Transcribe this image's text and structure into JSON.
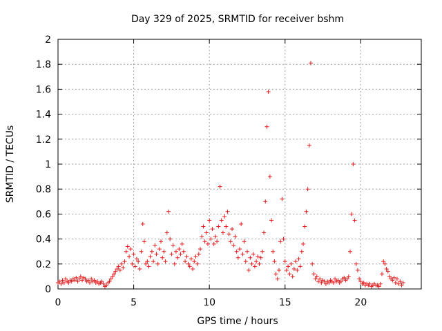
{
  "chart_data": {
    "type": "scatter",
    "title": "Day 329 of 2025, SRMTID for receiver bshm",
    "xlabel": "GPS time / hours",
    "ylabel": "SRMTID / TECUs",
    "xlim": [
      0,
      24
    ],
    "ylim": [
      0,
      2
    ],
    "xticks": [
      0,
      5,
      10,
      15,
      20
    ],
    "xtick_labels": [
      "0",
      "5",
      "10",
      "15",
      "20"
    ],
    "yticks": [
      0,
      0.2,
      0.4,
      0.6,
      0.8,
      1,
      1.2,
      1.4,
      1.6,
      1.8,
      2
    ],
    "ytick_labels": [
      "0",
      "0.2",
      "0.4",
      "0.6",
      "0.8",
      "1",
      "1.2",
      "1.4",
      "1.6",
      "1.8",
      "2"
    ],
    "grid": true,
    "marker": "+",
    "color": "#e41a1c",
    "series": [
      {
        "name": "SRMTID",
        "points": [
          [
            0.0,
            0.05
          ],
          [
            0.1,
            0.06
          ],
          [
            0.2,
            0.04
          ],
          [
            0.3,
            0.07
          ],
          [
            0.4,
            0.05
          ],
          [
            0.5,
            0.08
          ],
          [
            0.6,
            0.06
          ],
          [
            0.7,
            0.05
          ],
          [
            0.8,
            0.07
          ],
          [
            0.9,
            0.06
          ],
          [
            1.0,
            0.08
          ],
          [
            1.1,
            0.07
          ],
          [
            1.2,
            0.09
          ],
          [
            1.3,
            0.06
          ],
          [
            1.4,
            0.08
          ],
          [
            1.5,
            0.1
          ],
          [
            1.6,
            0.07
          ],
          [
            1.7,
            0.09
          ],
          [
            1.8,
            0.08
          ],
          [
            1.9,
            0.06
          ],
          [
            2.0,
            0.07
          ],
          [
            2.1,
            0.05
          ],
          [
            2.2,
            0.08
          ],
          [
            2.3,
            0.06
          ],
          [
            2.4,
            0.07
          ],
          [
            2.5,
            0.05
          ],
          [
            2.6,
            0.06
          ],
          [
            2.7,
            0.04
          ],
          [
            2.8,
            0.05
          ],
          [
            2.9,
            0.06
          ],
          [
            3.0,
            0.04
          ],
          [
            3.1,
            0.02
          ],
          [
            3.2,
            0.03
          ],
          [
            3.3,
            0.05
          ],
          [
            3.4,
            0.06
          ],
          [
            3.5,
            0.08
          ],
          [
            3.6,
            0.1
          ],
          [
            3.7,
            0.12
          ],
          [
            3.8,
            0.14
          ],
          [
            3.9,
            0.16
          ],
          [
            4.0,
            0.18
          ],
          [
            4.1,
            0.15
          ],
          [
            4.2,
            0.2
          ],
          [
            4.3,
            0.17
          ],
          [
            4.4,
            0.22
          ],
          [
            4.5,
            0.3
          ],
          [
            4.6,
            0.34
          ],
          [
            4.7,
            0.26
          ],
          [
            4.8,
            0.32
          ],
          [
            4.9,
            0.2
          ],
          [
            5.0,
            0.28
          ],
          [
            5.1,
            0.18
          ],
          [
            5.2,
            0.24
          ],
          [
            5.3,
            0.22
          ],
          [
            5.4,
            0.16
          ],
          [
            5.5,
            0.3
          ],
          [
            5.6,
            0.52
          ],
          [
            5.7,
            0.38
          ],
          [
            5.8,
            0.2
          ],
          [
            5.9,
            0.22
          ],
          [
            6.0,
            0.18
          ],
          [
            6.1,
            0.26
          ],
          [
            6.2,
            0.3
          ],
          [
            6.3,
            0.22
          ],
          [
            6.4,
            0.35
          ],
          [
            6.5,
            0.28
          ],
          [
            6.6,
            0.2
          ],
          [
            6.7,
            0.32
          ],
          [
            6.8,
            0.38
          ],
          [
            6.9,
            0.25
          ],
          [
            7.0,
            0.3
          ],
          [
            7.1,
            0.22
          ],
          [
            7.2,
            0.45
          ],
          [
            7.3,
            0.62
          ],
          [
            7.4,
            0.4
          ],
          [
            7.5,
            0.28
          ],
          [
            7.6,
            0.35
          ],
          [
            7.7,
            0.2
          ],
          [
            7.8,
            0.3
          ],
          [
            7.9,
            0.25
          ],
          [
            8.0,
            0.32
          ],
          [
            8.1,
            0.28
          ],
          [
            8.2,
            0.36
          ],
          [
            8.3,
            0.3
          ],
          [
            8.4,
            0.22
          ],
          [
            8.5,
            0.26
          ],
          [
            8.6,
            0.2
          ],
          [
            8.7,
            0.18
          ],
          [
            8.8,
            0.24
          ],
          [
            8.9,
            0.16
          ],
          [
            9.0,
            0.22
          ],
          [
            9.1,
            0.26
          ],
          [
            9.2,
            0.2
          ],
          [
            9.3,
            0.28
          ],
          [
            9.4,
            0.32
          ],
          [
            9.5,
            0.42
          ],
          [
            9.6,
            0.5
          ],
          [
            9.7,
            0.38
          ],
          [
            9.8,
            0.45
          ],
          [
            9.9,
            0.36
          ],
          [
            10.0,
            0.55
          ],
          [
            10.1,
            0.4
          ],
          [
            10.2,
            0.48
          ],
          [
            10.3,
            0.36
          ],
          [
            10.4,
            0.42
          ],
          [
            10.5,
            0.38
          ],
          [
            10.6,
            0.5
          ],
          [
            10.7,
            0.82
          ],
          [
            10.8,
            0.55
          ],
          [
            10.9,
            0.45
          ],
          [
            11.0,
            0.58
          ],
          [
            11.1,
            0.5
          ],
          [
            11.2,
            0.62
          ],
          [
            11.3,
            0.44
          ],
          [
            11.4,
            0.38
          ],
          [
            11.5,
            0.48
          ],
          [
            11.6,
            0.35
          ],
          [
            11.7,
            0.42
          ],
          [
            11.8,
            0.3
          ],
          [
            11.9,
            0.25
          ],
          [
            12.0,
            0.32
          ],
          [
            12.1,
            0.52
          ],
          [
            12.2,
            0.28
          ],
          [
            12.3,
            0.38
          ],
          [
            12.4,
            0.22
          ],
          [
            12.5,
            0.3
          ],
          [
            12.6,
            0.15
          ],
          [
            12.7,
            0.25
          ],
          [
            12.8,
            0.2
          ],
          [
            12.9,
            0.28
          ],
          [
            13.0,
            0.18
          ],
          [
            13.1,
            0.22
          ],
          [
            13.2,
            0.26
          ],
          [
            13.3,
            0.2
          ],
          [
            13.4,
            0.25
          ],
          [
            13.5,
            0.3
          ],
          [
            13.6,
            0.45
          ],
          [
            13.7,
            0.7
          ],
          [
            13.8,
            1.3
          ],
          [
            13.9,
            1.58
          ],
          [
            14.0,
            0.9
          ],
          [
            14.1,
            0.55
          ],
          [
            14.2,
            0.3
          ],
          [
            14.3,
            0.22
          ],
          [
            14.4,
            0.12
          ],
          [
            14.5,
            0.08
          ],
          [
            14.6,
            0.15
          ],
          [
            14.7,
            0.38
          ],
          [
            14.8,
            0.72
          ],
          [
            14.9,
            0.4
          ],
          [
            15.0,
            0.22
          ],
          [
            15.1,
            0.15
          ],
          [
            15.2,
            0.18
          ],
          [
            15.3,
            0.12
          ],
          [
            15.4,
            0.2
          ],
          [
            15.5,
            0.1
          ],
          [
            15.6,
            0.16
          ],
          [
            15.7,
            0.22
          ],
          [
            15.8,
            0.15
          ],
          [
            15.9,
            0.24
          ],
          [
            16.0,
            0.18
          ],
          [
            16.1,
            0.3
          ],
          [
            16.2,
            0.36
          ],
          [
            16.3,
            0.5
          ],
          [
            16.4,
            0.62
          ],
          [
            16.5,
            0.8
          ],
          [
            16.6,
            1.15
          ],
          [
            16.7,
            1.81
          ],
          [
            16.8,
            0.2
          ],
          [
            16.9,
            0.12
          ],
          [
            17.0,
            0.08
          ],
          [
            17.1,
            0.1
          ],
          [
            17.2,
            0.06
          ],
          [
            17.3,
            0.08
          ],
          [
            17.4,
            0.05
          ],
          [
            17.5,
            0.07
          ],
          [
            17.6,
            0.06
          ],
          [
            17.7,
            0.04
          ],
          [
            17.8,
            0.06
          ],
          [
            17.9,
            0.05
          ],
          [
            18.0,
            0.07
          ],
          [
            18.1,
            0.06
          ],
          [
            18.2,
            0.05
          ],
          [
            18.3,
            0.08
          ],
          [
            18.4,
            0.06
          ],
          [
            18.5,
            0.07
          ],
          [
            18.6,
            0.05
          ],
          [
            18.7,
            0.06
          ],
          [
            18.8,
            0.08
          ],
          [
            18.9,
            0.09
          ],
          [
            19.0,
            0.07
          ],
          [
            19.1,
            0.08
          ],
          [
            19.2,
            0.1
          ],
          [
            19.3,
            0.3
          ],
          [
            19.4,
            0.6
          ],
          [
            19.5,
            1.0
          ],
          [
            19.6,
            0.55
          ],
          [
            19.7,
            0.2
          ],
          [
            19.8,
            0.15
          ],
          [
            19.9,
            0.08
          ],
          [
            20.0,
            0.06
          ],
          [
            20.1,
            0.04
          ],
          [
            20.2,
            0.05
          ],
          [
            20.3,
            0.03
          ],
          [
            20.4,
            0.04
          ],
          [
            20.5,
            0.03
          ],
          [
            20.6,
            0.04
          ],
          [
            20.7,
            0.02
          ],
          [
            20.8,
            0.03
          ],
          [
            20.9,
            0.04
          ],
          [
            21.0,
            0.03
          ],
          [
            21.1,
            0.03
          ],
          [
            21.2,
            0.02
          ],
          [
            21.3,
            0.04
          ],
          [
            21.4,
            0.12
          ],
          [
            21.5,
            0.22
          ],
          [
            21.6,
            0.2
          ],
          [
            21.7,
            0.16
          ],
          [
            21.8,
            0.14
          ],
          [
            21.9,
            0.1
          ],
          [
            22.0,
            0.08
          ],
          [
            22.1,
            0.07
          ],
          [
            22.2,
            0.09
          ],
          [
            22.3,
            0.05
          ],
          [
            22.4,
            0.08
          ],
          [
            22.5,
            0.04
          ],
          [
            22.6,
            0.06
          ],
          [
            22.7,
            0.03
          ],
          [
            22.8,
            0.05
          ]
        ]
      }
    ]
  }
}
